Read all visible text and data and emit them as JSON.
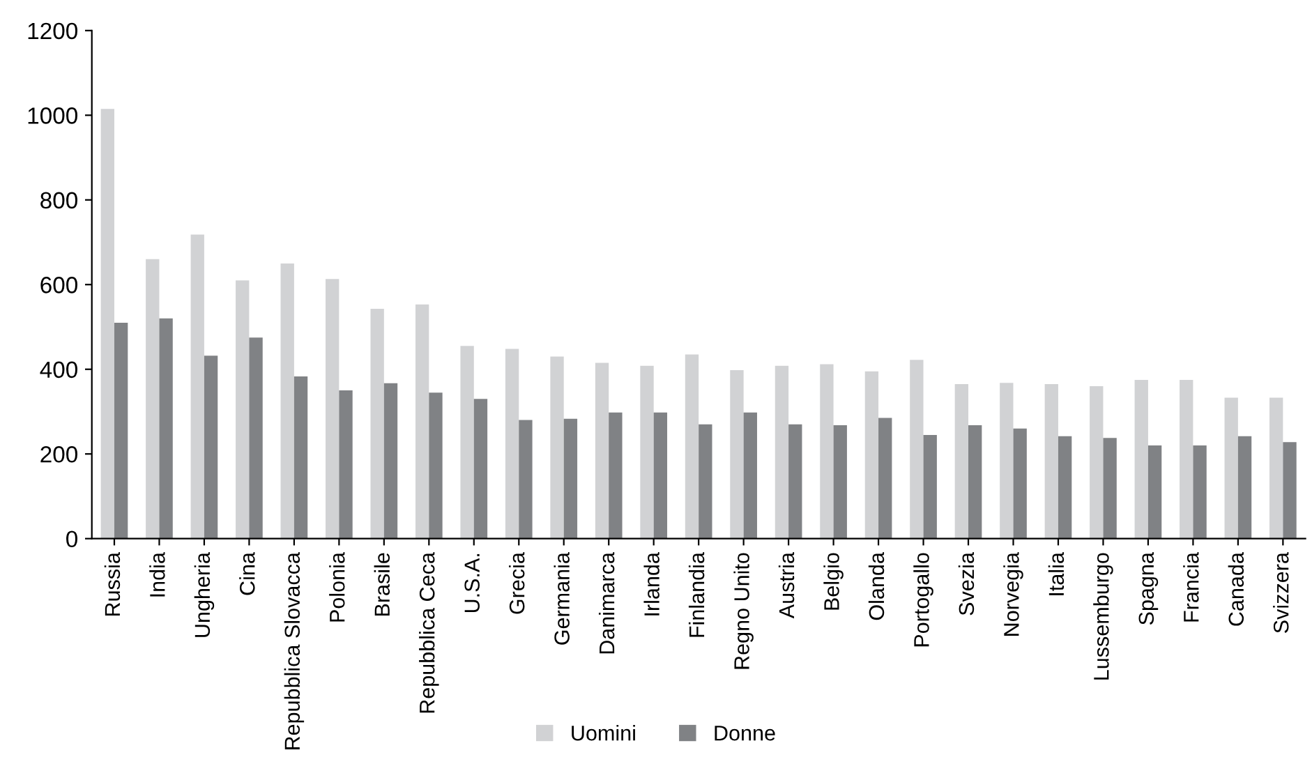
{
  "chart_data": {
    "type": "bar",
    "categories": [
      "Russia",
      "India",
      "Ungheria",
      "Cina",
      "Repubblica Slovacca",
      "Polonia",
      "Brasile",
      "Repubblica Ceca",
      "U.S.A.",
      "Grecia",
      "Germania",
      "Danimarca",
      "Irlanda",
      "Finlandia",
      "Regno Unito",
      "Austria",
      "Belgio",
      "Olanda",
      "Portogallo",
      "Svezia",
      "Norvegia",
      "Italia",
      "Lussemburgo",
      "Spagna",
      "Francia",
      "Canada",
      "Svizzera"
    ],
    "series": [
      {
        "name": "Uomini",
        "color": "#d1d2d4",
        "values": [
          1015,
          660,
          718,
          610,
          650,
          613,
          543,
          553,
          455,
          448,
          430,
          415,
          408,
          435,
          398,
          408,
          412,
          395,
          422,
          365,
          368,
          365,
          360,
          375,
          375,
          333,
          333
        ]
      },
      {
        "name": "Donne",
        "color": "#808285",
        "values": [
          510,
          520,
          432,
          475,
          383,
          350,
          367,
          345,
          330,
          280,
          283,
          298,
          298,
          270,
          298,
          270,
          268,
          285,
          245,
          268,
          260,
          242,
          238,
          220,
          220,
          242,
          228
        ]
      }
    ],
    "ylim": [
      0,
      1200
    ],
    "yticks": [
      0,
      200,
      400,
      600,
      800,
      1000,
      1200
    ],
    "grid": false,
    "legend": "bottom"
  }
}
